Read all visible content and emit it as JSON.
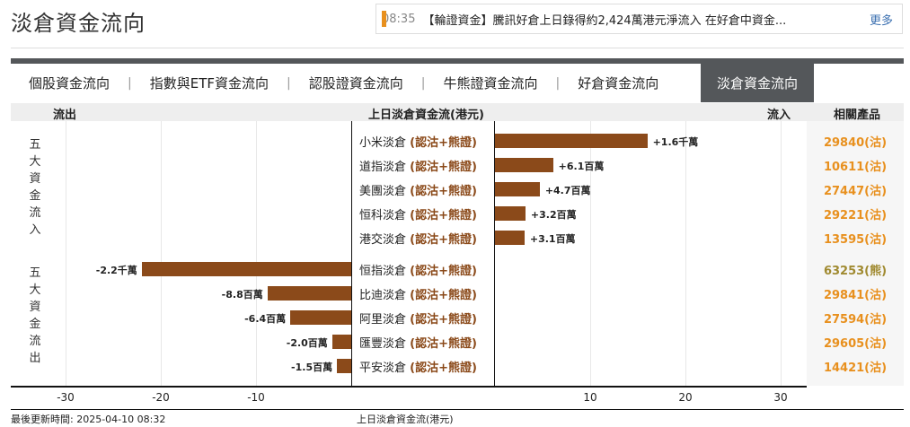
{
  "title": "淡倉資金流向",
  "news": {
    "time": "08:35",
    "text": "【輪證資金】騰訊好倉上日錄得約2,424萬港元淨流入 在好倉中資金...",
    "more": "更多"
  },
  "tabs": [
    {
      "label": "個股資金流向"
    },
    {
      "label": "指數與ETF資金流向"
    },
    {
      "label": "認股證資金流向"
    },
    {
      "label": "牛熊證資金流向"
    },
    {
      "label": "好倉資金流向"
    },
    {
      "label": "淡倉資金流向",
      "active": true
    }
  ],
  "header": {
    "outflow": "流出",
    "center": "上日淡倉資金流(港元)",
    "inflow": "流入",
    "products": "相關產品"
  },
  "side_labels": {
    "inflow": "五大資金流入",
    "outflow": "五大資金流出"
  },
  "colors": {
    "bar": "#8b4a1a",
    "call": "#e8901e",
    "bear": "#a08a30"
  },
  "chart_data": {
    "type": "bar",
    "unit": "百萬港元",
    "xlim": [
      -30,
      30
    ],
    "ticks": [
      -30,
      -20,
      -10,
      10,
      20,
      30
    ],
    "xlabel": "上日淡倉資金流(港元)",
    "inflow": [
      {
        "name": "小米淡倉",
        "type": "(認沽+熊證)",
        "value": 16,
        "label": "+1.6千萬",
        "product": "29840(沽)"
      },
      {
        "name": "道指淡倉",
        "type": "(認沽+熊證)",
        "value": 6.1,
        "label": "+6.1百萬",
        "product": "10611(沽)"
      },
      {
        "name": "美團淡倉",
        "type": "(認沽+熊證)",
        "value": 4.7,
        "label": "+4.7百萬",
        "product": "27447(沽)"
      },
      {
        "name": "恒科淡倉",
        "type": "(認沽+熊證)",
        "value": 3.2,
        "label": "+3.2百萬",
        "product": "29221(沽)"
      },
      {
        "name": "港交淡倉",
        "type": "(認沽+熊證)",
        "value": 3.1,
        "label": "+3.1百萬",
        "product": "13595(沽)"
      }
    ],
    "outflow": [
      {
        "name": "恒指淡倉",
        "type": "(認沽+熊證)",
        "value": -22,
        "label": "-2.2千萬",
        "product": "63253(熊)",
        "bear": true
      },
      {
        "name": "比迪淡倉",
        "type": "(認沽+熊證)",
        "value": -8.8,
        "label": "-8.8百萬",
        "product": "29841(沽)"
      },
      {
        "name": "阿里淡倉",
        "type": "(認沽+熊證)",
        "value": -6.4,
        "label": "-6.4百萬",
        "product": "27594(沽)"
      },
      {
        "name": "匯豐淡倉",
        "type": "(認沽+熊證)",
        "value": -2.0,
        "label": "-2.0百萬",
        "product": "29605(沽)"
      },
      {
        "name": "平安淡倉",
        "type": "(認沽+熊證)",
        "value": -1.5,
        "label": "-1.5百萬",
        "product": "14421(沽)"
      }
    ]
  },
  "footer": {
    "updated": "最後更新時間: 2025-04-10 08:32",
    "xlabel": "上日淡倉資金流(港元)"
  }
}
